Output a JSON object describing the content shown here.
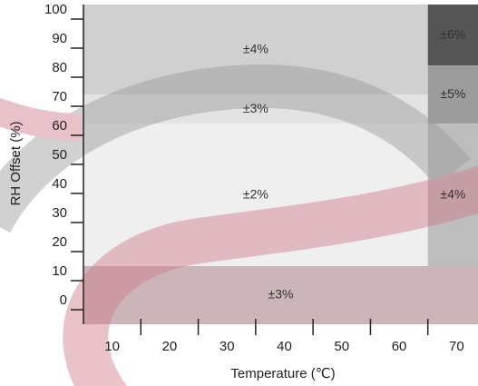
{
  "chart_data": {
    "type": "zones",
    "x_label": "Temperature (℃)",
    "y_label": "RH Offset (%)",
    "xlim": [
      5,
      75
    ],
    "ylim": [
      -5,
      105
    ],
    "xticks": [
      10,
      20,
      30,
      40,
      50,
      60,
      70
    ],
    "xticks_minor": [
      15,
      25,
      35,
      45,
      55,
      65
    ],
    "yticks": [
      0,
      10,
      20,
      30,
      40,
      50,
      60,
      70,
      80,
      90,
      100
    ],
    "zones": [
      {
        "x": [
          5,
          65
        ],
        "y": [
          74,
          105
        ],
        "label": "±4%",
        "color": "#d0d0d0"
      },
      {
        "x": [
          5,
          65
        ],
        "y": [
          64,
          74
        ],
        "label": "±3%",
        "color": "#e3e3e3"
      },
      {
        "x": [
          5,
          65
        ],
        "y": [
          15,
          64
        ],
        "label": "±2%",
        "color": "#efefef"
      },
      {
        "x": [
          5,
          75
        ],
        "y": [
          -5,
          15
        ],
        "label": "±3%",
        "color": "#cbb5b9"
      },
      {
        "x": [
          65,
          75
        ],
        "y": [
          84,
          105
        ],
        "label": "±6%",
        "color": "#555555"
      },
      {
        "x": [
          65,
          75
        ],
        "y": [
          64,
          84
        ],
        "label": "±5%",
        "color": "#9c9c9c"
      },
      {
        "x": [
          65,
          75
        ],
        "y": [
          15,
          64
        ],
        "label": "±4%",
        "color": "#bdbdbd"
      }
    ]
  }
}
